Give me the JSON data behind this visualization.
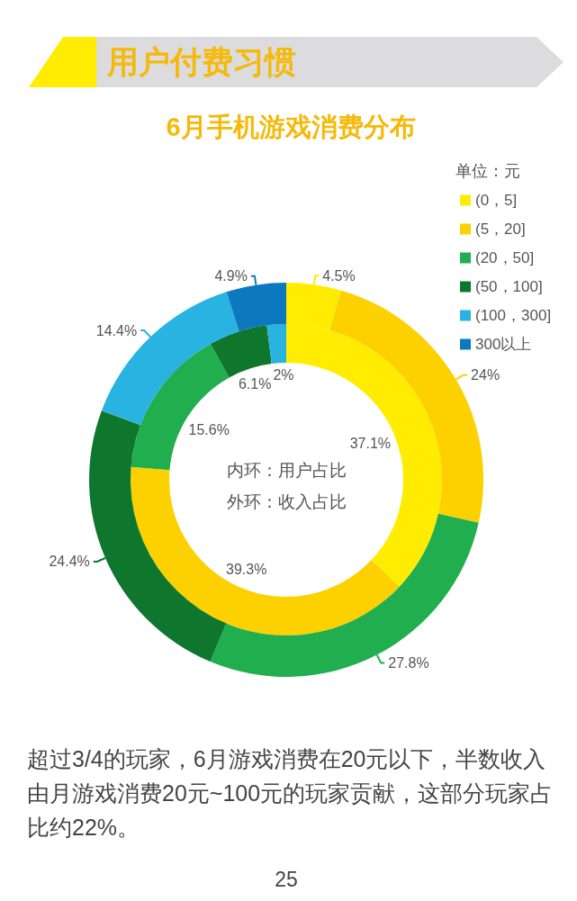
{
  "chart_data": {
    "type": "donut",
    "title": "用户付费习惯",
    "subtitle": "6月手机游戏消费分布",
    "legend_title": "单位：元",
    "categories": [
      "(0，5]",
      "(5，20]",
      "(20，50]",
      "(50，100]",
      "(100，300]",
      "300以上"
    ],
    "colors": [
      "#ffec00",
      "#fdd000",
      "#20ae4e",
      "#0f762e",
      "#29b3e1",
      "#0c78be"
    ],
    "series": [
      {
        "values": [
          37.1,
          39.3,
          15.6,
          6.1,
          2,
          null
        ],
        "value_labels": [
          "37.1%",
          "39.3%",
          "15.6%",
          "6.1%",
          "2%",
          null
        ]
      },
      {
        "values": [
          4.5,
          24,
          27.8,
          24.4,
          14.4,
          4.9
        ],
        "value_labels": [
          "4.5%",
          "24%",
          "27.8%",
          "24.4%",
          "14.4%",
          "4.9%"
        ]
      }
    ],
    "legend": "top right",
    "annotations": [
      "内环：用户占比",
      "外环：收入占比",
      "超过3/4的玩家，6月游戏消费在20元以下，半数收入由月游戏消费20元~100元的玩家贡献，这部分玩家占比约22%。",
      "25"
    ]
  }
}
